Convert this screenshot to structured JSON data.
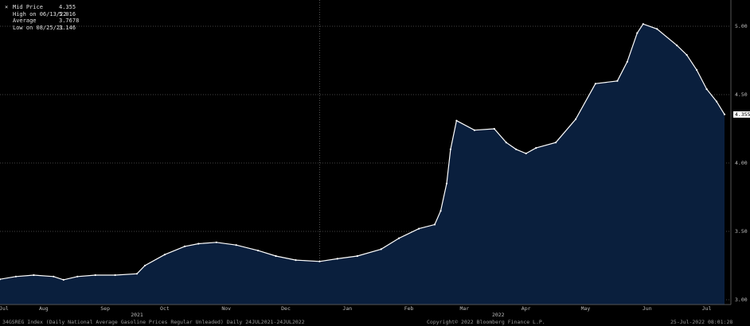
{
  "legend": {
    "rows": [
      {
        "symbol": "×",
        "label": "Mid Price",
        "value": "4.355"
      },
      {
        "symbol": "",
        "label": "High on 06/13/22",
        "value": "5.016"
      },
      {
        "symbol": "",
        "label": "Average",
        "value": "3.7678"
      },
      {
        "symbol": "",
        "label": "Low on 08/25/21",
        "value": "3.146"
      }
    ]
  },
  "footer": {
    "left": "34GSREG Index (Daily National Average Gasoline Prices Regular Unleaded)  Daily 24JUL2021-24JUL2022",
    "center": "Copyright© 2022 Bloomberg Finance L.P.",
    "right": "25-Jul-2022 08:01:28"
  },
  "chart_data": {
    "type": "area",
    "title": "",
    "xlabel": "",
    "ylabel": "",
    "ylim": [
      3.0,
      5.2
    ],
    "xlim": [
      "2021-07-24",
      "2022-07-24"
    ],
    "y_ticks": [
      "3.00",
      "3.50",
      "4.00",
      "4.50",
      "5.00"
    ],
    "x_ticks": [
      {
        "label": "Jul",
        "date": "2021-07-26"
      },
      {
        "label": "Aug",
        "date": "2021-08-15"
      },
      {
        "label": "Sep",
        "date": "2021-09-15"
      },
      {
        "label": "Oct",
        "date": "2021-10-15"
      },
      {
        "label": "Nov",
        "date": "2021-11-15"
      },
      {
        "label": "Dec",
        "date": "2021-12-15"
      },
      {
        "label": "Jan",
        "date": "2022-01-15"
      },
      {
        "label": "Feb",
        "date": "2022-02-15"
      },
      {
        "label": "Mar",
        "date": "2022-03-15"
      },
      {
        "label": "Apr",
        "date": "2022-04-15"
      },
      {
        "label": "May",
        "date": "2022-05-15"
      },
      {
        "label": "Jun",
        "date": "2022-06-15"
      },
      {
        "label": "Jul",
        "date": "2022-07-15"
      }
    ],
    "year_labels": [
      {
        "label": "2021",
        "date": "2021-10-01"
      },
      {
        "label": "2022",
        "date": "2022-04-01"
      }
    ],
    "last_value_label": "4.355",
    "fill_color": "#0a1f3d",
    "line_color": "#ffffff",
    "grid": true,
    "series": [
      {
        "x": [
          "2021-07-24",
          "2021-08-01",
          "2021-08-10",
          "2021-08-20",
          "2021-08-25",
          "2021-09-01",
          "2021-09-10",
          "2021-09-20",
          "2021-10-01",
          "2021-10-05",
          "2021-10-15",
          "2021-10-25",
          "2021-11-01",
          "2021-11-10",
          "2021-11-20",
          "2021-12-01",
          "2021-12-10",
          "2021-12-20",
          "2022-01-01",
          "2022-01-10",
          "2022-01-20",
          "2022-02-01",
          "2022-02-10",
          "2022-02-20",
          "2022-02-28",
          "2022-03-03",
          "2022-03-06",
          "2022-03-08",
          "2022-03-11",
          "2022-03-20",
          "2022-03-30",
          "2022-04-05",
          "2022-04-10",
          "2022-04-15",
          "2022-04-20",
          "2022-04-30",
          "2022-05-10",
          "2022-05-20",
          "2022-05-31",
          "2022-06-05",
          "2022-06-10",
          "2022-06-13",
          "2022-06-20",
          "2022-06-30",
          "2022-07-05",
          "2022-07-10",
          "2022-07-15",
          "2022-07-20",
          "2022-07-24"
        ],
        "values": [
          3.15,
          3.17,
          3.18,
          3.17,
          3.146,
          3.17,
          3.18,
          3.18,
          3.19,
          3.25,
          3.33,
          3.39,
          3.41,
          3.42,
          3.4,
          3.36,
          3.32,
          3.29,
          3.28,
          3.3,
          3.32,
          3.37,
          3.45,
          3.52,
          3.55,
          3.65,
          3.85,
          4.1,
          4.31,
          4.24,
          4.25,
          4.15,
          4.1,
          4.07,
          4.11,
          4.15,
          4.32,
          4.58,
          4.6,
          4.74,
          4.95,
          5.016,
          4.98,
          4.86,
          4.79,
          4.68,
          4.54,
          4.45,
          4.355
        ]
      }
    ]
  }
}
